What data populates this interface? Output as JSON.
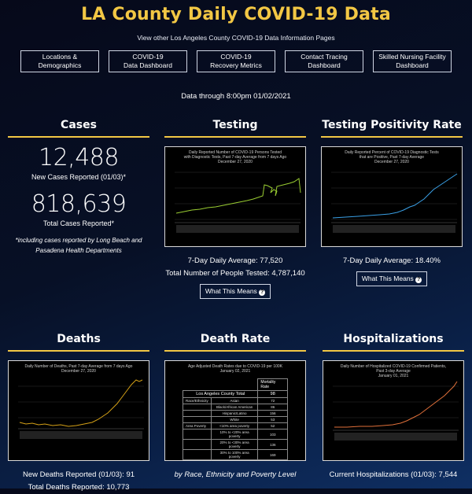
{
  "header": {
    "title": "LA County Daily COVID-19 Data",
    "subtitle": "View other Los Angeles County COVID-19 Data Information Pages",
    "nav": [
      {
        "label": "Locations &\nDemographics"
      },
      {
        "label": "COVID-19\nData Dashboard"
      },
      {
        "label": "COVID-19\nRecovery Metrics"
      },
      {
        "label": "Contact Tracing\nDashboard"
      },
      {
        "label": "Skilled Nursing Facility\nDashboard"
      }
    ],
    "data_through": "Data through 8:00pm 01/02/2021"
  },
  "cases": {
    "heading": "Cases",
    "new_value": "12,488",
    "new_label": "New Cases Reported (01/03)*",
    "total_value": "818,639",
    "total_label": "Total Cases Reported*",
    "note": "*including cases reported by Long Beach and Pasadena Health Departments"
  },
  "testing": {
    "heading": "Testing",
    "chart_title": "Daily Reported Number of COVID-19 Persons Tested\nwith Diagnostic Tests, Past 7-day Average from 7 days Ago\nDecember 27, 2020",
    "avg": "7-Day Daily Average: 77,520",
    "total": "Total Number of People Tested: 4,787,140",
    "button": "What This Means",
    "line_color": "#9acd32"
  },
  "positivity": {
    "heading": "Testing Positivity Rate",
    "chart_title": "Daily Reported Percent of COVID-19 Diagnostic Tests\nthat are Positive, Past 7-day Average\nDecember 27, 2020",
    "avg": "7-Day Daily Average: 18.40%",
    "button": "What This Means",
    "line_color": "#3aa0e6"
  },
  "deaths": {
    "heading": "Deaths",
    "chart_title": "Daily Number of Deaths, Past 7-day Average from 7 days Ago\nDecember 27, 2020",
    "new": "New Deaths Reported (01/03): 91",
    "total": "Total Deaths Reported: 10,773",
    "line_color": "#d4a017"
  },
  "death_rate": {
    "heading": "Death Rate",
    "chart_title": "Age Adjusted Death Rates due to COVID-19 per 100K\nJanuary 02, 2021",
    "table_header": "Mortality Rate",
    "county_label": "Los Angeles County Total",
    "county_value": "98",
    "rows": [
      {
        "group": "Race/Ethnicity",
        "label": "Asian",
        "value": "72"
      },
      {
        "group": "",
        "label": "Black/African American",
        "value": "86"
      },
      {
        "group": "",
        "label": "Hispanic/Latino",
        "value": "156"
      },
      {
        "group": "",
        "label": "White",
        "value": "53"
      },
      {
        "group": "Area Poverty",
        "label": "<10% area poverty",
        "value": "52"
      },
      {
        "group": "",
        "label": "10% to <20% area poverty",
        "value": "103"
      },
      {
        "group": "",
        "label": "20% to <30% area poverty",
        "value": "136"
      },
      {
        "group": "",
        "label": "30% to 100% area poverty",
        "value": "169"
      }
    ],
    "caption": "by Race, Ethnicity and Poverty Level"
  },
  "hospitalizations": {
    "heading": "Hospitalizations",
    "chart_title": "Daily Number of Hospitalized COVID-19 Confirmed Patients,\nPast 3-day Average\nJanuary 01, 2021",
    "current": "Current Hospitalizations (01/03): 7,544",
    "line_color": "#e0703a"
  }
}
